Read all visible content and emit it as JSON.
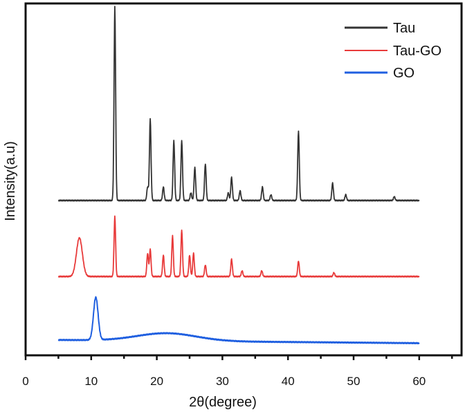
{
  "chart_data": {
    "type": "line",
    "title": "",
    "xlabel": "2θ(degree)",
    "ylabel": "Intensity(a.u)",
    "xlim": [
      0,
      66
    ],
    "xticks": [
      0,
      10,
      20,
      30,
      40,
      50,
      60
    ],
    "xtick_labels": [
      "0",
      "10",
      "20",
      "30",
      "40",
      "50",
      "60"
    ],
    "grid": false,
    "legend_position": "upper right",
    "y_ticks_shown": false,
    "note": "Stacked (offset) XRD patterns; y values are relative intensities above each curve's own baseline (0-100 scale, Tau strongest peak = 100).",
    "series": [
      {
        "name": "Tau",
        "color": "#333333",
        "offset": 2,
        "x_range": [
          5,
          60
        ],
        "peaks": [
          {
            "x": 13.6,
            "y": 100
          },
          {
            "x": 18.6,
            "y": 7
          },
          {
            "x": 19.0,
            "y": 42
          },
          {
            "x": 21.0,
            "y": 7
          },
          {
            "x": 22.6,
            "y": 31
          },
          {
            "x": 23.8,
            "y": 31
          },
          {
            "x": 25.2,
            "y": 4
          },
          {
            "x": 25.8,
            "y": 17
          },
          {
            "x": 27.4,
            "y": 19
          },
          {
            "x": 30.9,
            "y": 4
          },
          {
            "x": 31.4,
            "y": 12
          },
          {
            "x": 32.7,
            "y": 5
          },
          {
            "x": 36.1,
            "y": 7
          },
          {
            "x": 37.4,
            "y": 3
          },
          {
            "x": 41.6,
            "y": 36
          },
          {
            "x": 46.8,
            "y": 9
          },
          {
            "x": 48.8,
            "y": 3
          },
          {
            "x": 56.2,
            "y": 2
          }
        ]
      },
      {
        "name": "Tau-GO",
        "color": "#e83a3a",
        "offset": 1,
        "x_range": [
          5,
          60
        ],
        "peaks": [
          {
            "x": 8.2,
            "y": 20
          },
          {
            "x": 13.6,
            "y": 31
          },
          {
            "x": 18.6,
            "y": 12
          },
          {
            "x": 19.0,
            "y": 14
          },
          {
            "x": 21.0,
            "y": 11
          },
          {
            "x": 22.4,
            "y": 21
          },
          {
            "x": 23.8,
            "y": 24
          },
          {
            "x": 25.0,
            "y": 11
          },
          {
            "x": 25.6,
            "y": 12
          },
          {
            "x": 27.4,
            "y": 6
          },
          {
            "x": 31.4,
            "y": 9
          },
          {
            "x": 33.0,
            "y": 3
          },
          {
            "x": 36.0,
            "y": 3
          },
          {
            "x": 41.6,
            "y": 8
          },
          {
            "x": 47.0,
            "y": 2
          }
        ]
      },
      {
        "name": "GO",
        "color": "#1f5fe0",
        "offset": 0,
        "x_range": [
          5,
          60
        ],
        "peaks": [
          {
            "x": 10.7,
            "y": 22
          },
          {
            "x": 21.5,
            "y": 4
          }
        ]
      }
    ]
  },
  "legend": {
    "items": [
      {
        "label": "Tau",
        "color": "#333333"
      },
      {
        "label": "Tau-GO",
        "color": "#e83a3a"
      },
      {
        "label": "GO",
        "color": "#1f5fe0"
      }
    ]
  },
  "axes": {
    "xlabel": "2θ(degree)",
    "ylabel": "Intensity(a.u)",
    "xtick_labels": [
      "0",
      "10",
      "20",
      "30",
      "40",
      "50",
      "60"
    ]
  }
}
